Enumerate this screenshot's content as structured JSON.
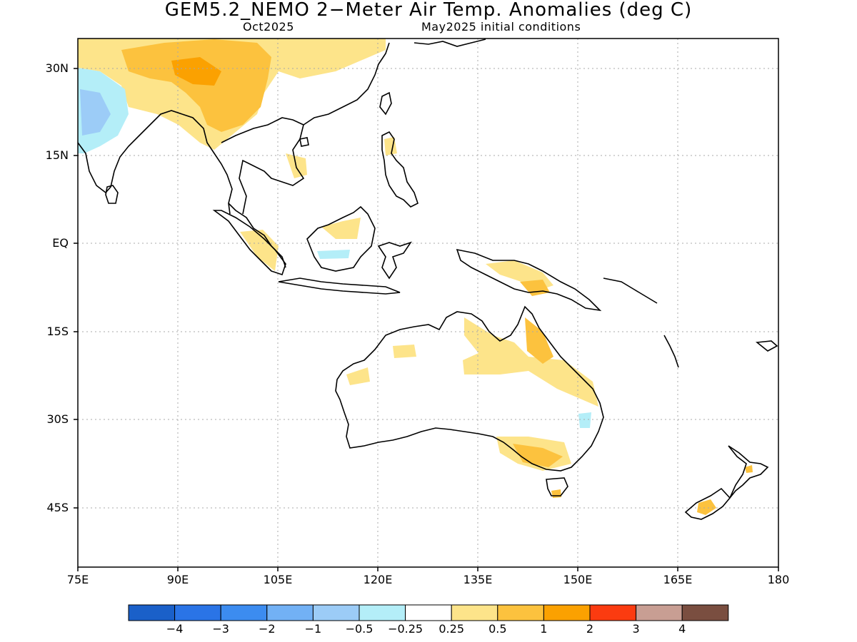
{
  "title": "GEM5.2_NEMO 2−Meter Air Temp. Anomalies (deg C)",
  "subtitle_left": "Oct2025",
  "subtitle_right": "May2025 initial conditions",
  "axes": {
    "lon_labels": [
      "75E",
      "90E",
      "105E",
      "120E",
      "135E",
      "150E",
      "165E",
      "180"
    ],
    "lat_labels": [
      "30N",
      "15N",
      "EQ",
      "15S",
      "30S",
      "45S"
    ],
    "lon_range": [
      75,
      180
    ],
    "lat_range": [
      -55,
      35
    ],
    "grid": "dotted"
  },
  "colorbar": {
    "labels": [
      "−4",
      "−3",
      "−2",
      "−1",
      "−0.5",
      "−0.25",
      "0.25",
      "0.5",
      "1",
      "2",
      "3",
      "4"
    ],
    "colors": [
      "#1a60c9",
      "#2a74e6",
      "#3c8cf0",
      "#72b1f5",
      "#9cccf7",
      "#b4eef8",
      "#ffffff",
      "#fde48a",
      "#fcc23e",
      "#fba101",
      "#fb3b10",
      "#c89e93",
      "#7a4e40"
    ]
  },
  "colors": {
    "coast": "#000000",
    "grid": "#a8a8a8",
    "anom_050": "#fde48a",
    "anom_100": "#fcc23e",
    "anom_200": "#fba101",
    "anom_neg025": "#b4eef8",
    "anom_neg050": "#9cccf7"
  }
}
